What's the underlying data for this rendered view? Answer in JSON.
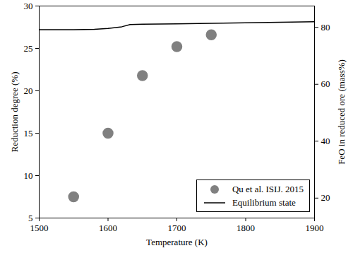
{
  "chart_data": {
    "type": "scatter",
    "x_label": "Temperature (K)",
    "y_label": "Reduction degree (%)",
    "y2_label": "FeO in reduced ore (mass%)",
    "xlim": [
      1500,
      1900
    ],
    "xticks": [
      1500,
      1600,
      1700,
      1800,
      1900
    ],
    "ylim": [
      5,
      30
    ],
    "yticks": [
      5,
      10,
      15,
      20,
      25,
      30
    ],
    "y2lim": [
      13,
      87.5
    ],
    "y2ticks": [
      20,
      40,
      60,
      80
    ],
    "legend": "lower right",
    "series": [
      {
        "name": "Qu et al. ISIJ. 2015",
        "type": "scatter",
        "marker": "circle",
        "color": "#808080",
        "x": [
          1550,
          1600,
          1650,
          1700,
          1750
        ],
        "values": [
          7.5,
          15.0,
          21.8,
          25.2,
          26.6
        ]
      },
      {
        "name": "Equilibrium state",
        "type": "line",
        "axis": "y2",
        "color": "#000000",
        "line_style": "solid",
        "x": [
          1500,
          1550,
          1580,
          1600,
          1620,
          1632,
          1650,
          1700,
          1750,
          1800,
          1850,
          1900
        ],
        "values": [
          79.2,
          79.2,
          79.3,
          79.6,
          80.2,
          81.0,
          81.1,
          81.2,
          81.4,
          81.6,
          81.8,
          82.0
        ]
      }
    ]
  }
}
